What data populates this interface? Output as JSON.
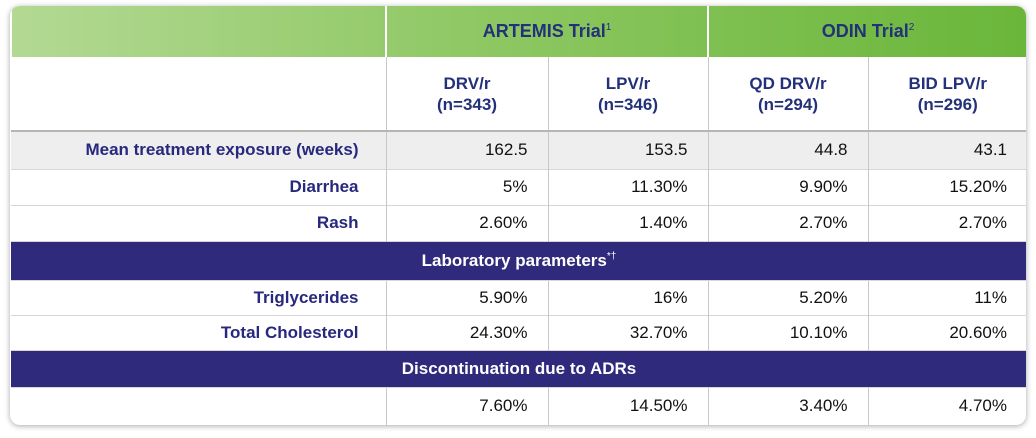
{
  "header": {
    "groups": [
      {
        "title": "ARTEMIS Trial",
        "note": "1"
      },
      {
        "title": "ODIN Trial",
        "note": "2"
      }
    ],
    "columns": [
      [
        "DRV/r",
        "(n=343)"
      ],
      [
        "LPV/r",
        "(n=346)"
      ],
      [
        "QD DRV/r",
        "(n=294)"
      ],
      [
        "BID LPV/r",
        "(n=296)"
      ]
    ]
  },
  "rows": [
    {
      "label": "Mean treatment exposure (weeks)",
      "values": [
        "162.5",
        "153.5",
        "44.8",
        "43.1"
      ]
    },
    {
      "label": "Diarrhea",
      "values": [
        "5%",
        "11.30%",
        "9.90%",
        "15.20%"
      ]
    },
    {
      "label": "Rash",
      "values": [
        "2.60%",
        "1.40%",
        "2.70%",
        "2.70%"
      ]
    },
    {
      "section": "Laboratory parameters",
      "note": "*†"
    },
    {
      "label": "Triglycerides",
      "values": [
        "5.90%",
        "16%",
        "5.20%",
        "11%"
      ]
    },
    {
      "label": "Total Cholesterol",
      "values": [
        "24.30%",
        "32.70%",
        "10.10%",
        "20.60%"
      ]
    },
    {
      "section": "Discontinuation due to ADRs"
    },
    {
      "values": [
        "7.60%",
        "14.50%",
        "3.40%",
        "4.70%"
      ]
    }
  ]
}
